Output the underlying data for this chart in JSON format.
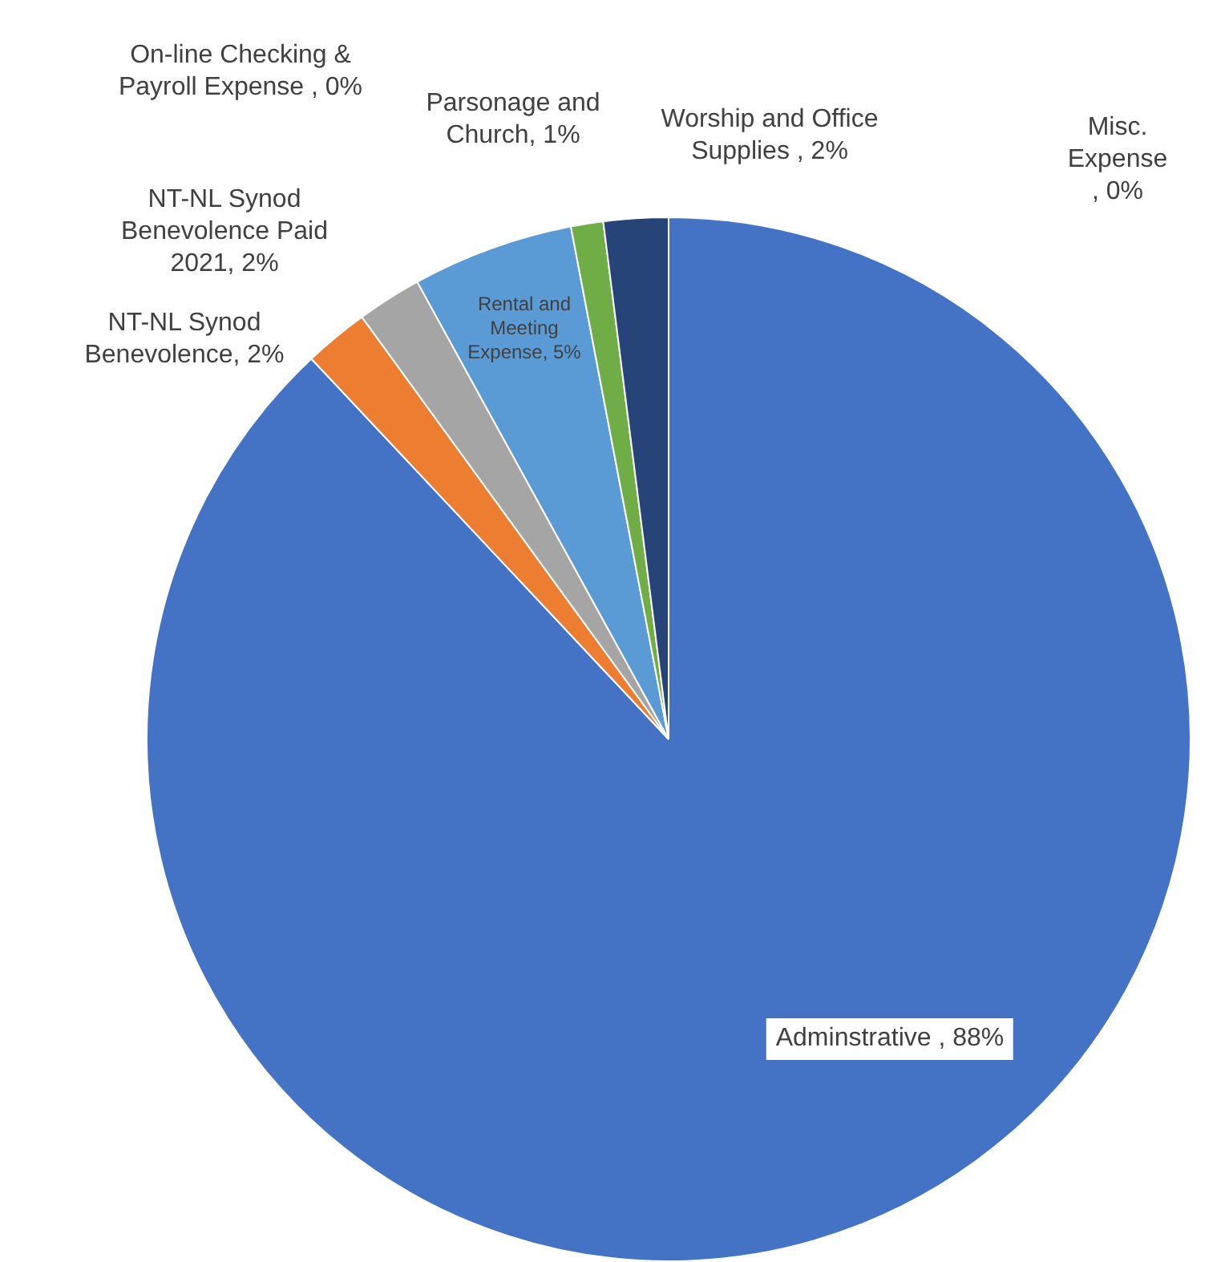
{
  "chart_data": {
    "type": "pie",
    "categories": [
      "Adminstrative ",
      "NT-NL Synod Benevolence",
      "NT-NL Synod Benevolence Paid 2021",
      "On-line Checking & Payroll Expense ",
      "Rental and Meeting Expense",
      "Parsonage and Church",
      "Worship and Office Supplies ",
      "Misc. Expense "
    ],
    "values": [
      88,
      2,
      2,
      0,
      5,
      1,
      2,
      0
    ],
    "colors": [
      "#4472c4",
      "#ed7d31",
      "#a5a5a5",
      "#ffc000",
      "#5b9bd5",
      "#70ad47",
      "#264478",
      "#c55a11"
    ],
    "value_labels": [
      ", 88%",
      ", 2%",
      ", 2%",
      ", 0%",
      ", 5%",
      ", 1%",
      ", 2%",
      ", 0%"
    ],
    "legend": false
  }
}
